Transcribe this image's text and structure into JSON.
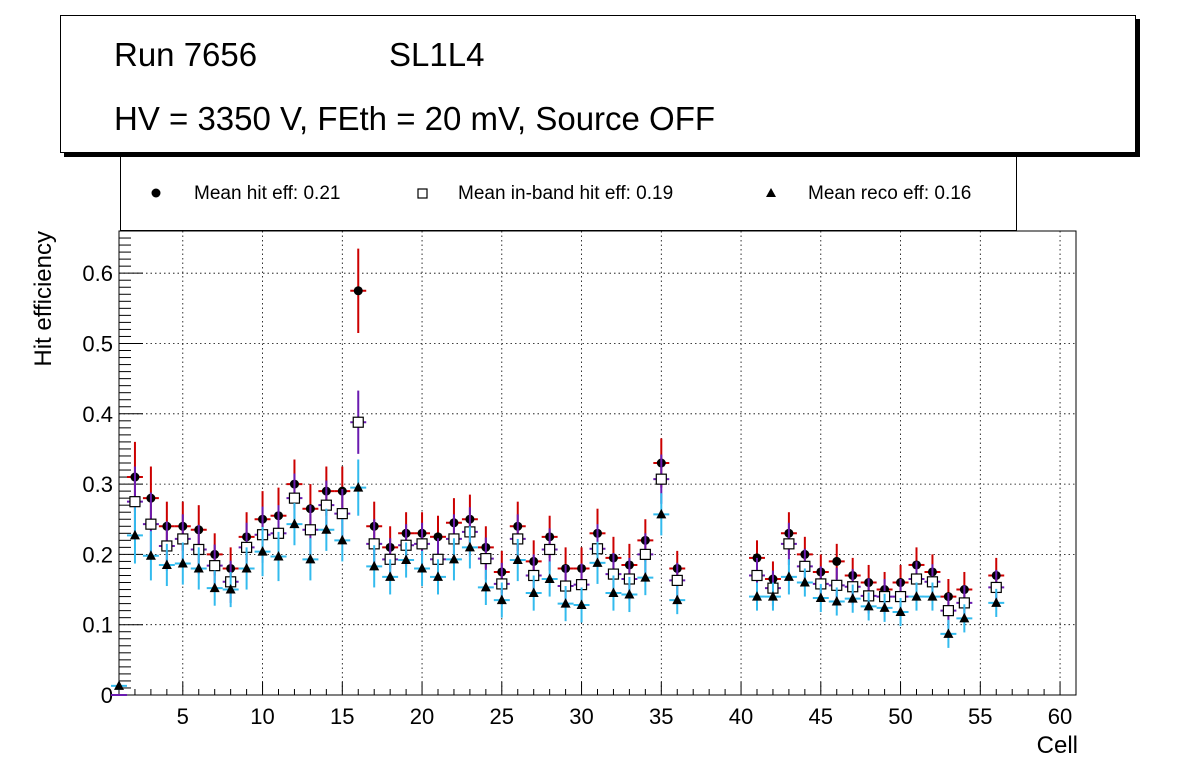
{
  "header": {
    "run": "Run 7656",
    "layer": "SL1L4",
    "conditions": "HV = 3350 V, FEth = 20 mV, Source OFF"
  },
  "chart_data": {
    "type": "scatter",
    "xlabel": "Cell",
    "ylabel": "Hit efficiency",
    "xlim": [
      1,
      61
    ],
    "ylim": [
      0,
      0.66
    ],
    "grid": true,
    "legend_position": "top",
    "x_ticks": [
      "5",
      "10",
      "15",
      "20",
      "25",
      "30",
      "35",
      "40",
      "45",
      "50",
      "55",
      "60"
    ],
    "y_ticks": [
      "0",
      "0.1",
      "0.2",
      "0.3",
      "0.4",
      "0.5",
      "0.6"
    ],
    "x": [
      1,
      2,
      3,
      4,
      5,
      6,
      7,
      8,
      9,
      10,
      11,
      12,
      13,
      14,
      15,
      16,
      17,
      18,
      19,
      20,
      21,
      22,
      23,
      24,
      25,
      26,
      27,
      28,
      29,
      30,
      31,
      32,
      33,
      34,
      35,
      36,
      41,
      42,
      43,
      44,
      45,
      46,
      47,
      48,
      49,
      50,
      51,
      52,
      53,
      54,
      56
    ],
    "series": [
      {
        "name": "Mean hit  eff: 0.21",
        "marker": "circle",
        "color": "#000000",
        "error_color": "#cc0000",
        "values": [
          0.0,
          0.31,
          0.28,
          0.24,
          0.24,
          0.235,
          0.2,
          0.18,
          0.225,
          0.25,
          0.255,
          0.3,
          0.265,
          0.29,
          0.29,
          0.575,
          0.24,
          0.21,
          0.23,
          0.23,
          0.225,
          0.245,
          0.25,
          0.21,
          0.175,
          0.24,
          0.19,
          0.225,
          0.18,
          0.18,
          0.23,
          0.195,
          0.185,
          0.22,
          0.33,
          0.18,
          0.195,
          0.165,
          0.23,
          0.2,
          0.175,
          0.19,
          0.17,
          0.16,
          0.15,
          0.16,
          0.185,
          0.175,
          0.14,
          0.15,
          0.17
        ],
        "errors": [
          0.0,
          0.05,
          0.045,
          0.035,
          0.035,
          0.035,
          0.03,
          0.03,
          0.035,
          0.04,
          0.04,
          0.035,
          0.035,
          0.035,
          0.035,
          0.06,
          0.035,
          0.03,
          0.03,
          0.03,
          0.03,
          0.035,
          0.035,
          0.03,
          0.03,
          0.035,
          0.03,
          0.03,
          0.03,
          0.03,
          0.035,
          0.03,
          0.03,
          0.03,
          0.035,
          0.025,
          0.025,
          0.025,
          0.03,
          0.025,
          0.025,
          0.025,
          0.025,
          0.025,
          0.025,
          0.025,
          0.025,
          0.025,
          0.025,
          0.025,
          0.025
        ]
      },
      {
        "name": "Mean in-band hit eff: 0.19",
        "marker": "open-square",
        "color": "#000000",
        "error_color": "#6a1bb0",
        "values": [
          0.0,
          0.275,
          0.243,
          0.212,
          0.222,
          0.207,
          0.184,
          0.161,
          0.21,
          0.228,
          0.23,
          0.28,
          0.235,
          0.27,
          0.258,
          0.388,
          0.215,
          0.193,
          0.213,
          0.215,
          0.193,
          0.222,
          0.232,
          0.194,
          0.158,
          0.222,
          0.17,
          0.207,
          0.155,
          0.157,
          0.208,
          0.172,
          0.165,
          0.2,
          0.307,
          0.163,
          0.17,
          0.152,
          0.215,
          0.183,
          0.158,
          0.156,
          0.154,
          0.141,
          0.14,
          0.14,
          0.165,
          0.161,
          0.12,
          0.131,
          0.153
        ],
        "errors": [
          0.0,
          0.05,
          0.045,
          0.035,
          0.035,
          0.035,
          0.03,
          0.03,
          0.035,
          0.04,
          0.04,
          0.035,
          0.035,
          0.035,
          0.035,
          0.045,
          0.035,
          0.03,
          0.03,
          0.03,
          0.03,
          0.035,
          0.035,
          0.03,
          0.03,
          0.035,
          0.03,
          0.03,
          0.03,
          0.03,
          0.035,
          0.03,
          0.03,
          0.03,
          0.035,
          0.025,
          0.025,
          0.025,
          0.03,
          0.025,
          0.025,
          0.025,
          0.025,
          0.025,
          0.025,
          0.025,
          0.025,
          0.025,
          0.025,
          0.025,
          0.025
        ]
      },
      {
        "name": "Mean reco eff: 0.16",
        "marker": "triangle",
        "color": "#000000",
        "error_color": "#33bbee",
        "values": [
          0.013,
          0.227,
          0.198,
          0.185,
          0.187,
          0.18,
          0.152,
          0.15,
          0.18,
          0.204,
          0.197,
          0.243,
          0.193,
          0.235,
          0.22,
          0.295,
          0.183,
          0.168,
          0.192,
          0.18,
          0.168,
          0.193,
          0.21,
          0.153,
          0.135,
          0.192,
          0.145,
          0.165,
          0.13,
          0.128,
          0.188,
          0.145,
          0.143,
          0.167,
          0.257,
          0.135,
          0.14,
          0.14,
          0.168,
          0.16,
          0.138,
          0.133,
          0.137,
          0.126,
          0.124,
          0.118,
          0.14,
          0.14,
          0.087,
          0.109,
          0.131
        ],
        "errors": [
          0.006,
          0.04,
          0.035,
          0.03,
          0.03,
          0.03,
          0.025,
          0.025,
          0.03,
          0.035,
          0.035,
          0.03,
          0.03,
          0.03,
          0.03,
          0.04,
          0.03,
          0.025,
          0.025,
          0.025,
          0.025,
          0.03,
          0.03,
          0.025,
          0.025,
          0.03,
          0.025,
          0.025,
          0.025,
          0.025,
          0.03,
          0.025,
          0.025,
          0.025,
          0.03,
          0.02,
          0.02,
          0.02,
          0.025,
          0.02,
          0.02,
          0.02,
          0.02,
          0.02,
          0.02,
          0.02,
          0.02,
          0.02,
          0.02,
          0.02,
          0.02
        ]
      }
    ]
  }
}
